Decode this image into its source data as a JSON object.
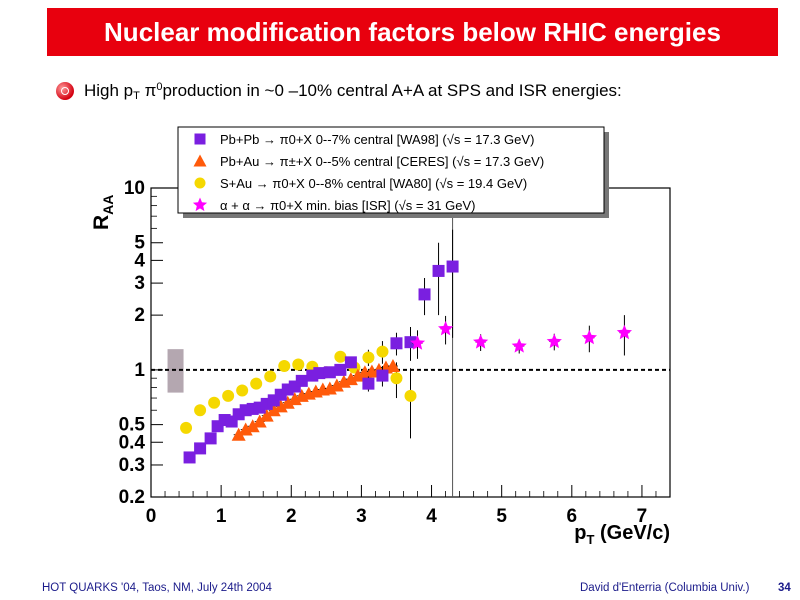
{
  "slide": {
    "title": "Nuclear modification factors below RHIC energies",
    "bullet": {
      "pre": "High p",
      "pt_sub": "T",
      "pi": " π",
      "pi_sup": "0",
      "post": "production in ~0 –10% central A+A at SPS and ISR energies:"
    },
    "footer_left": "HOT QUARKS '04, Taos, NM, July 24th 2004",
    "footer_right": "David d'Enterria (Columbia Univ.)",
    "page_number": "34"
  },
  "chart_data": {
    "type": "scatter",
    "log_y": true,
    "xlim": [
      0,
      7.4
    ],
    "ylim": [
      0.2,
      10
    ],
    "xticks": [
      "0",
      "1",
      "2",
      "3",
      "4",
      "5",
      "6",
      "7"
    ],
    "yticks": [
      "0.2",
      "0.3",
      "0.4",
      "0.5",
      "1",
      "2",
      "3",
      "4",
      "5",
      "10"
    ],
    "xlabel": "pT (GeV/c)",
    "ylabel": "RAA",
    "reference_line_y": 1,
    "normalization_band": {
      "x": 0.35,
      "ylow": 0.75,
      "yhigh": 1.3,
      "color": "#b4a7b0"
    },
    "vertical_line_x": 4.3,
    "series": [
      {
        "name": "Pb+Pb → π0+X  0--7%  central [WA98] (√s = 17.3 GeV)",
        "marker": "square",
        "color": "#7a1fe0",
        "points": [
          [
            0.55,
            0.33,
            0
          ],
          [
            0.7,
            0.37,
            0
          ],
          [
            0.85,
            0.42,
            0
          ],
          [
            0.95,
            0.49,
            0
          ],
          [
            1.05,
            0.53,
            0
          ],
          [
            1.15,
            0.52,
            0
          ],
          [
            1.25,
            0.57,
            0
          ],
          [
            1.35,
            0.6,
            0
          ],
          [
            1.45,
            0.61,
            0
          ],
          [
            1.55,
            0.62,
            0
          ],
          [
            1.65,
            0.65,
            0
          ],
          [
            1.75,
            0.68,
            0
          ],
          [
            1.85,
            0.73,
            0
          ],
          [
            1.95,
            0.78,
            0
          ],
          [
            2.05,
            0.81,
            0
          ],
          [
            2.15,
            0.87,
            0
          ],
          [
            2.3,
            0.93,
            0
          ],
          [
            2.4,
            0.96,
            0
          ],
          [
            2.55,
            0.97,
            0
          ],
          [
            2.7,
            1.0,
            0
          ],
          [
            2.85,
            1.1,
            0.04
          ],
          [
            3.1,
            0.84,
            0.08
          ],
          [
            3.3,
            0.93,
            0.12
          ],
          [
            3.5,
            1.4,
            0.2
          ],
          [
            3.7,
            1.42,
            0.3
          ],
          [
            3.9,
            2.6,
            0.6
          ],
          [
            4.1,
            3.5,
            1.5
          ],
          [
            4.3,
            3.7,
            2.2
          ]
        ]
      },
      {
        "name": "Pb+Au → π±+X  0--5% central [CERES] (√s = 17.3 GeV)",
        "marker": "triangle",
        "color": "#ff5a0a",
        "points": [
          [
            1.25,
            0.44
          ],
          [
            1.35,
            0.47
          ],
          [
            1.45,
            0.49
          ],
          [
            1.55,
            0.52
          ],
          [
            1.65,
            0.56
          ],
          [
            1.75,
            0.6
          ],
          [
            1.85,
            0.63
          ],
          [
            1.95,
            0.66
          ],
          [
            2.05,
            0.69
          ],
          [
            2.15,
            0.72
          ],
          [
            2.25,
            0.74
          ],
          [
            2.35,
            0.76
          ],
          [
            2.45,
            0.78
          ],
          [
            2.55,
            0.79
          ],
          [
            2.65,
            0.82
          ],
          [
            2.75,
            0.86
          ],
          [
            2.85,
            0.89
          ],
          [
            2.95,
            0.93
          ],
          [
            3.05,
            0.97
          ],
          [
            3.15,
            0.98
          ],
          [
            3.25,
            1.0
          ],
          [
            3.35,
            1.03
          ],
          [
            3.45,
            1.05
          ]
        ]
      },
      {
        "name": "S+Au → π0+X 0--8%  central [WA80] (√s = 19.4 GeV)",
        "marker": "circle",
        "color": "#f5d800",
        "points": [
          [
            0.5,
            0.48,
            0
          ],
          [
            0.7,
            0.6,
            0
          ],
          [
            0.9,
            0.66,
            0
          ],
          [
            1.1,
            0.72,
            0
          ],
          [
            1.3,
            0.77,
            0
          ],
          [
            1.5,
            0.84,
            0
          ],
          [
            1.7,
            0.92,
            0
          ],
          [
            1.9,
            1.05,
            0
          ],
          [
            2.1,
            1.07,
            0
          ],
          [
            2.3,
            1.04,
            0.04
          ],
          [
            2.5,
            0.97,
            0.05
          ],
          [
            2.7,
            1.18,
            0.06
          ],
          [
            2.9,
            1.03,
            0.07
          ],
          [
            3.1,
            1.17,
            0.12
          ],
          [
            3.3,
            1.26,
            0.18
          ],
          [
            3.5,
            0.9,
            0.2
          ],
          [
            3.7,
            0.72,
            0.3
          ]
        ]
      },
      {
        "name": "α + α → π0+X min. bias [ISR] (√s = 31 GeV)",
        "marker": "star",
        "color": "#ff00ff",
        "points": [
          [
            3.8,
            1.4,
            0.25
          ],
          [
            4.2,
            1.68,
            0.3
          ],
          [
            4.7,
            1.42,
            0.15
          ],
          [
            5.25,
            1.35,
            0.12
          ],
          [
            5.75,
            1.43,
            0.15
          ],
          [
            6.25,
            1.5,
            0.25
          ],
          [
            6.75,
            1.6,
            0.4
          ]
        ]
      }
    ]
  }
}
